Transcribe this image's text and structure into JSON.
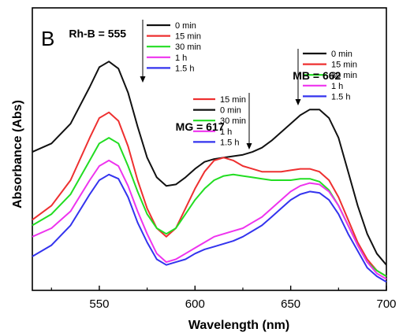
{
  "chart_data": {
    "type": "line",
    "panel_label": "B",
    "xlabel": "Wavelength (nm)",
    "ylabel": "Absorbance (Abs)",
    "xlim": [
      515,
      700
    ],
    "ylim": [
      0,
      1
    ],
    "x_ticks": [
      550,
      600,
      650,
      700
    ],
    "y_ticks_labeled": false,
    "grid": false,
    "colors": {
      "0 min": "#111111",
      "15 min": "#ee3030",
      "30 min": "#22dd22",
      "1 h": "#ee33ee",
      "1.5 h": "#3333ee"
    },
    "series": [
      {
        "name": "0 min",
        "x": [
          515,
          525,
          535,
          545,
          550,
          555,
          560,
          565,
          570,
          575,
          580,
          585,
          590,
          595,
          600,
          605,
          610,
          615,
          620,
          625,
          630,
          635,
          640,
          645,
          650,
          655,
          660,
          665,
          670,
          675,
          680,
          685,
          690,
          695,
          700
        ],
        "values": [
          0.49,
          0.52,
          0.59,
          0.72,
          0.79,
          0.81,
          0.785,
          0.7,
          0.58,
          0.47,
          0.4,
          0.37,
          0.375,
          0.4,
          0.43,
          0.455,
          0.465,
          0.47,
          0.475,
          0.48,
          0.49,
          0.505,
          0.53,
          0.56,
          0.59,
          0.62,
          0.64,
          0.64,
          0.61,
          0.54,
          0.42,
          0.3,
          0.2,
          0.13,
          0.09
        ]
      },
      {
        "name": "15 min",
        "x": [
          515,
          525,
          535,
          545,
          550,
          555,
          560,
          565,
          570,
          575,
          580,
          585,
          590,
          595,
          600,
          605,
          610,
          615,
          620,
          625,
          630,
          635,
          640,
          645,
          650,
          655,
          660,
          665,
          670,
          675,
          680,
          685,
          690,
          695,
          700
        ],
        "values": [
          0.25,
          0.3,
          0.39,
          0.54,
          0.61,
          0.63,
          0.6,
          0.51,
          0.39,
          0.29,
          0.22,
          0.19,
          0.22,
          0.29,
          0.36,
          0.42,
          0.46,
          0.47,
          0.46,
          0.44,
          0.43,
          0.42,
          0.42,
          0.42,
          0.425,
          0.43,
          0.43,
          0.42,
          0.39,
          0.33,
          0.25,
          0.17,
          0.11,
          0.07,
          0.05
        ]
      },
      {
        "name": "30 min",
        "x": [
          515,
          525,
          535,
          545,
          550,
          555,
          560,
          565,
          570,
          575,
          580,
          585,
          590,
          595,
          600,
          605,
          610,
          615,
          620,
          625,
          630,
          635,
          640,
          645,
          650,
          655,
          660,
          665,
          670,
          675,
          680,
          685,
          690,
          695,
          700
        ],
        "values": [
          0.23,
          0.27,
          0.34,
          0.46,
          0.52,
          0.54,
          0.52,
          0.44,
          0.35,
          0.27,
          0.22,
          0.2,
          0.22,
          0.27,
          0.32,
          0.36,
          0.39,
          0.405,
          0.41,
          0.405,
          0.4,
          0.395,
          0.39,
          0.39,
          0.39,
          0.395,
          0.395,
          0.385,
          0.355,
          0.3,
          0.23,
          0.16,
          0.1,
          0.07,
          0.05
        ]
      },
      {
        "name": "1 h",
        "x": [
          515,
          525,
          535,
          545,
          550,
          555,
          560,
          565,
          570,
          575,
          580,
          585,
          590,
          595,
          600,
          605,
          610,
          615,
          620,
          625,
          630,
          635,
          640,
          645,
          650,
          655,
          660,
          665,
          670,
          675,
          680,
          685,
          690,
          695,
          700
        ],
        "values": [
          0.19,
          0.22,
          0.28,
          0.39,
          0.44,
          0.46,
          0.44,
          0.37,
          0.28,
          0.2,
          0.13,
          0.1,
          0.11,
          0.13,
          0.15,
          0.17,
          0.19,
          0.2,
          0.21,
          0.22,
          0.24,
          0.26,
          0.29,
          0.32,
          0.35,
          0.37,
          0.38,
          0.375,
          0.35,
          0.3,
          0.23,
          0.16,
          0.1,
          0.06,
          0.04
        ]
      },
      {
        "name": "1.5 h",
        "x": [
          515,
          525,
          535,
          545,
          550,
          555,
          560,
          565,
          570,
          575,
          580,
          585,
          590,
          595,
          600,
          605,
          610,
          615,
          620,
          625,
          630,
          635,
          640,
          645,
          650,
          655,
          660,
          665,
          670,
          675,
          680,
          685,
          690,
          695,
          700
        ],
        "values": [
          0.12,
          0.16,
          0.23,
          0.34,
          0.39,
          0.41,
          0.395,
          0.33,
          0.24,
          0.17,
          0.11,
          0.09,
          0.1,
          0.11,
          0.13,
          0.145,
          0.155,
          0.165,
          0.175,
          0.19,
          0.21,
          0.23,
          0.26,
          0.29,
          0.32,
          0.34,
          0.35,
          0.345,
          0.32,
          0.27,
          0.2,
          0.14,
          0.08,
          0.05,
          0.03
        ]
      }
    ],
    "annotations": [
      {
        "text": "Rh-B = 555",
        "x": 555,
        "y": 0.895
      },
      {
        "text": "MG = 617",
        "x": 617,
        "y": 0.565
      },
      {
        "text": "MB = 662",
        "x": 662,
        "y": 0.747
      }
    ],
    "legends": [
      {
        "entries": [
          "0 min",
          "15 min",
          "30 min",
          "1 h",
          "1.5  h"
        ],
        "keys": [
          "0 min",
          "15 min",
          "30 min",
          "1 h",
          "1.5 h"
        ]
      },
      {
        "entries": [
          "15 min",
          "0 min",
          "30 min",
          "1 h",
          "1.5 h"
        ],
        "keys": [
          "15 min",
          "0 min",
          "30 min",
          "1 h",
          "1.5 h"
        ]
      },
      {
        "entries": [
          "0 min",
          "15 min",
          "30 min",
          "1 h",
          "1.5  h"
        ],
        "keys": [
          "0 min",
          "15 min",
          "30 min",
          "1 h",
          "1.5 h"
        ]
      }
    ]
  }
}
